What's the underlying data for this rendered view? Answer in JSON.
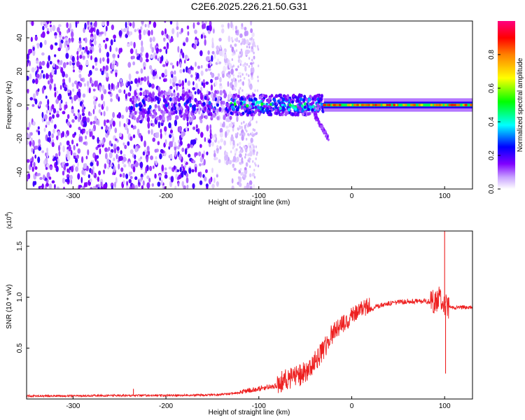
{
  "title": "C2E6.2025.226.21.50.G31",
  "chart_data": [
    {
      "type": "heatmap",
      "xlabel": "Height of straight line (km)",
      "ylabel": "Frequency (Hz)",
      "xlim": [
        -350,
        130
      ],
      "ylim": [
        -50,
        50
      ],
      "x_ticks": [
        -300,
        -200,
        -100,
        0,
        100
      ],
      "y_ticks": [
        -40,
        -20,
        0,
        20,
        40
      ],
      "colorbar": {
        "label": "Normalized spectral amplitude",
        "range": [
          0,
          1
        ],
        "ticks": [
          "0.0",
          "0.2",
          "0.4",
          "0.6",
          "0.8"
        ],
        "colors": [
          "#ffffff",
          "#c8a2ff",
          "#8000ff",
          "#0000ff",
          "#00ffff",
          "#00ff00",
          "#ffff00",
          "#ff8000",
          "#ff0000",
          "#ff0080"
        ]
      },
      "features": [
        {
          "x_range": [
            -350,
            -130
          ],
          "freq_range": [
            -50,
            50
          ],
          "amplitude": 0.15
        },
        {
          "x_range": [
            -240,
            -130
          ],
          "freq_range": [
            -8,
            8
          ],
          "amplitude": 0.3
        },
        {
          "x_range": [
            -130,
            -30
          ],
          "freq_range": [
            -6,
            6
          ],
          "amplitude": 0.45
        },
        {
          "x_range": [
            -30,
            130
          ],
          "freq_range": [
            -2,
            2
          ],
          "amplitude": 0.9
        }
      ],
      "grid": false
    },
    {
      "type": "line",
      "xlabel": "Height of straight line (km)",
      "ylabel": "SNR (10 * v/v)",
      "y_multiplier": "(x10^4)",
      "xlim": [
        -350,
        130
      ],
      "ylim": [
        0,
        1.65
      ],
      "x_ticks": [
        -300,
        -200,
        -100,
        0,
        100
      ],
      "y_ticks": [
        "0.5",
        "1.0",
        "1.5"
      ],
      "series": [
        {
          "color": "#ee2020",
          "x": [
            -350,
            -300,
            -250,
            -200,
            -150,
            -120,
            -100,
            -80,
            -60,
            -50,
            -40,
            -30,
            -20,
            -10,
            0,
            10,
            20,
            30,
            40,
            50,
            60,
            70,
            80,
            90,
            95,
            100,
            105,
            110,
            120,
            130
          ],
          "y": [
            0.03,
            0.03,
            0.035,
            0.035,
            0.04,
            0.06,
            0.09,
            0.12,
            0.17,
            0.22,
            0.32,
            0.45,
            0.62,
            0.7,
            0.78,
            0.85,
            0.88,
            0.92,
            0.94,
            0.95,
            0.96,
            0.96,
            0.96,
            0.95,
            1.0,
            0.92,
            0.9,
            0.9,
            0.9,
            0.9
          ]
        }
      ],
      "spikes": [
        {
          "x": -235,
          "y": 0.1
        },
        {
          "x": 100,
          "y": 1.65
        },
        {
          "x": 101,
          "y": 0.25
        }
      ],
      "grid": false
    }
  ]
}
